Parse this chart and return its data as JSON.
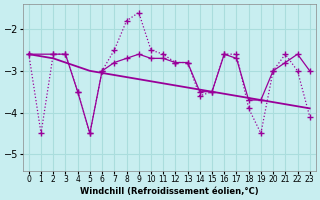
{
  "xlabel": "Windchill (Refroidissement éolien,°C)",
  "ylabel": "",
  "bg_color": "#c8eef0",
  "line_color": "#990099",
  "grid_color": "#aadddd",
  "xlim": [
    -0.5,
    23.5
  ],
  "ylim": [
    -5.4,
    -1.4
  ],
  "yticks": [
    -5,
    -4,
    -3,
    -2
  ],
  "xticks": [
    0,
    1,
    2,
    3,
    4,
    5,
    6,
    7,
    8,
    9,
    10,
    11,
    12,
    13,
    14,
    15,
    16,
    17,
    18,
    19,
    20,
    21,
    22,
    23
  ],
  "series0_x": [
    0,
    1,
    2,
    3,
    4,
    5,
    6,
    7,
    8,
    9,
    10,
    11,
    12,
    13,
    14,
    15,
    16,
    17,
    18,
    19,
    20,
    21,
    22,
    23
  ],
  "series0_y": [
    -2.6,
    -4.5,
    -2.6,
    -2.6,
    -3.5,
    -4.5,
    -3.0,
    -2.5,
    -1.8,
    -1.6,
    -2.5,
    -2.6,
    -2.8,
    -2.8,
    -3.6,
    -3.5,
    -2.6,
    -2.6,
    -3.9,
    -4.5,
    -3.0,
    -2.6,
    -3.0,
    -4.1
  ],
  "series1_x": [
    0,
    2,
    3,
    4,
    5,
    6,
    7,
    8,
    9,
    10,
    11,
    12,
    13,
    14,
    15,
    16,
    17,
    18,
    19,
    20,
    21,
    22,
    23
  ],
  "series1_y": [
    -2.6,
    -2.6,
    -2.6,
    -3.5,
    -4.5,
    -3.0,
    -2.8,
    -2.7,
    -2.6,
    -2.7,
    -2.7,
    -2.8,
    -2.8,
    -3.5,
    -3.5,
    -2.6,
    -2.7,
    -3.7,
    -3.7,
    -3.0,
    -2.8,
    -2.6,
    -3.0
  ],
  "series2_x": [
    0,
    1,
    2,
    3,
    4,
    5,
    6,
    7,
    8,
    9,
    10,
    11,
    12,
    13,
    14,
    15,
    16,
    17,
    18,
    19,
    20,
    21,
    22,
    23
  ],
  "series2_y": [
    -2.6,
    -2.65,
    -2.7,
    -2.8,
    -2.9,
    -3.0,
    -3.05,
    -3.1,
    -3.15,
    -3.2,
    -3.25,
    -3.3,
    -3.35,
    -3.4,
    -3.45,
    -3.5,
    -3.55,
    -3.6,
    -3.65,
    -3.7,
    -3.75,
    -3.8,
    -3.85,
    -3.9
  ]
}
